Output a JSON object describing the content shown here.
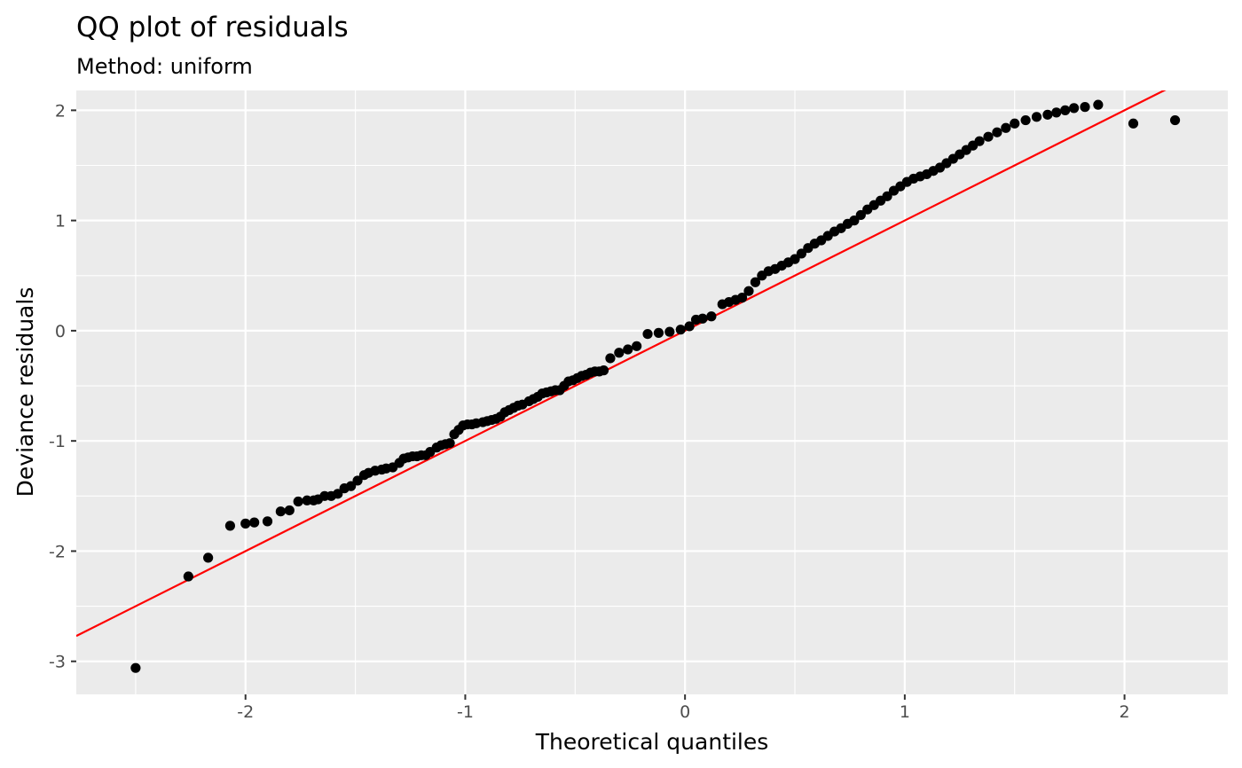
{
  "chart_data": {
    "type": "scatter",
    "title": "QQ plot of residuals",
    "subtitle": "Method: uniform",
    "xlabel": "Theoretical quantiles",
    "ylabel": "Deviance residuals",
    "xlim": [
      -2.77,
      2.47
    ],
    "ylim": [
      -3.3,
      2.18
    ],
    "x_ticks": [
      -2,
      -1,
      0,
      1,
      2
    ],
    "x_tick_labels": [
      "-2",
      "-1",
      "0",
      "1",
      "2"
    ],
    "y_ticks": [
      -3,
      -2,
      -1,
      0,
      1,
      2
    ],
    "y_tick_labels": [
      "-3",
      "-2",
      "-1",
      "0",
      "1",
      "2"
    ],
    "grid": true,
    "panel_background": "#ebebeb",
    "point_color": "#000000",
    "line_color": "#ff0000",
    "reference_line": {
      "slope": 1.0,
      "intercept": 0.0
    },
    "series": [
      {
        "x": [
          -2.5,
          -2.26,
          -2.17,
          -2.07,
          -2.0,
          -1.96,
          -1.9,
          -1.84,
          -1.8,
          -1.76,
          -1.72,
          -1.69,
          -1.67,
          -1.64,
          -1.61,
          -1.58,
          -1.55,
          -1.52,
          -1.49,
          -1.46,
          -1.44,
          -1.41,
          -1.38,
          -1.36,
          -1.33,
          -1.3,
          -1.28,
          -1.26,
          -1.24,
          -1.22,
          -1.2,
          -1.18,
          -1.16,
          -1.13,
          -1.11,
          -1.09,
          -1.07,
          -1.05,
          -1.03,
          -1.01,
          -0.99,
          -0.97,
          -0.95,
          -0.92,
          -0.9,
          -0.88,
          -0.86,
          -0.84,
          -0.82,
          -0.8,
          -0.78,
          -0.76,
          -0.74,
          -0.71,
          -0.69,
          -0.67,
          -0.65,
          -0.63,
          -0.61,
          -0.59,
          -0.57,
          -0.55,
          -0.53,
          -0.51,
          -0.49,
          -0.47,
          -0.45,
          -0.43,
          -0.41,
          -0.39,
          -0.37,
          -0.34,
          -0.3,
          -0.26,
          -0.22,
          -0.17,
          -0.12,
          -0.07,
          -0.02,
          0.02,
          0.05,
          0.08,
          0.12,
          0.17,
          0.2,
          0.23,
          0.26,
          0.29,
          0.32,
          0.35,
          0.38,
          0.41,
          0.44,
          0.47,
          0.5,
          0.53,
          0.56,
          0.59,
          0.62,
          0.65,
          0.68,
          0.71,
          0.74,
          0.77,
          0.8,
          0.83,
          0.86,
          0.89,
          0.92,
          0.95,
          0.98,
          1.01,
          1.04,
          1.07,
          1.1,
          1.13,
          1.16,
          1.19,
          1.22,
          1.25,
          1.28,
          1.31,
          1.34,
          1.38,
          1.42,
          1.46,
          1.5,
          1.55,
          1.6,
          1.65,
          1.69,
          1.73,
          1.77,
          1.82,
          1.88,
          2.04,
          2.23
        ],
        "y": [
          -3.06,
          -2.23,
          -2.06,
          -1.77,
          -1.75,
          -1.74,
          -1.73,
          -1.64,
          -1.63,
          -1.55,
          -1.54,
          -1.54,
          -1.53,
          -1.5,
          -1.5,
          -1.48,
          -1.43,
          -1.41,
          -1.36,
          -1.31,
          -1.29,
          -1.27,
          -1.26,
          -1.25,
          -1.24,
          -1.2,
          -1.16,
          -1.15,
          -1.14,
          -1.14,
          -1.13,
          -1.13,
          -1.1,
          -1.06,
          -1.04,
          -1.03,
          -1.02,
          -0.94,
          -0.9,
          -0.86,
          -0.85,
          -0.85,
          -0.84,
          -0.83,
          -0.82,
          -0.81,
          -0.8,
          -0.78,
          -0.74,
          -0.72,
          -0.7,
          -0.68,
          -0.67,
          -0.64,
          -0.62,
          -0.6,
          -0.57,
          -0.56,
          -0.55,
          -0.54,
          -0.54,
          -0.5,
          -0.46,
          -0.45,
          -0.43,
          -0.41,
          -0.4,
          -0.38,
          -0.37,
          -0.37,
          -0.36,
          -0.25,
          -0.2,
          -0.17,
          -0.14,
          -0.03,
          -0.02,
          -0.01,
          0.01,
          0.04,
          0.1,
          0.11,
          0.13,
          0.24,
          0.26,
          0.28,
          0.3,
          0.36,
          0.44,
          0.5,
          0.54,
          0.56,
          0.59,
          0.62,
          0.65,
          0.7,
          0.75,
          0.79,
          0.82,
          0.86,
          0.9,
          0.93,
          0.97,
          1.0,
          1.05,
          1.1,
          1.14,
          1.18,
          1.22,
          1.27,
          1.31,
          1.35,
          1.38,
          1.4,
          1.42,
          1.45,
          1.48,
          1.52,
          1.56,
          1.6,
          1.64,
          1.68,
          1.72,
          1.76,
          1.8,
          1.84,
          1.88,
          1.91,
          1.94,
          1.96,
          1.98,
          2.0,
          2.02,
          2.03,
          2.05,
          1.88,
          1.91
        ]
      }
    ]
  }
}
